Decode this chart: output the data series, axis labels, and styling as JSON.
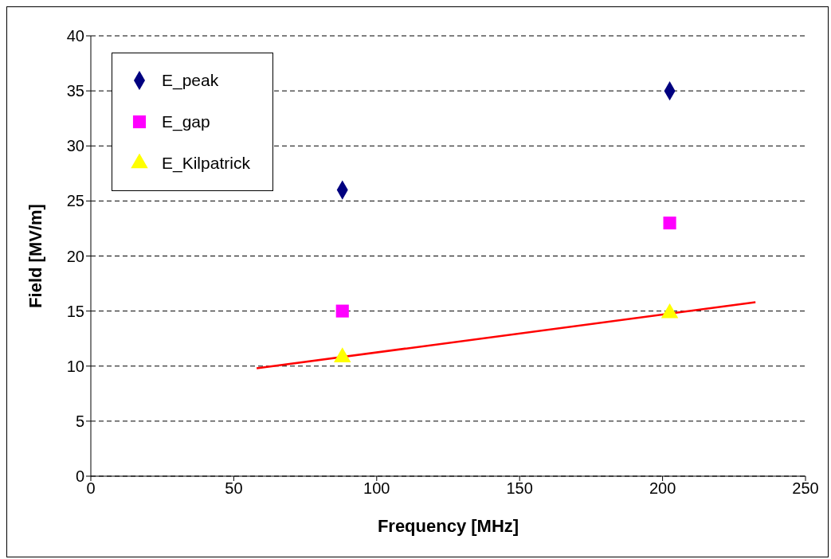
{
  "chart_data": {
    "type": "scatter",
    "xlabel": "Frequency [MHz]",
    "ylabel": "Field [MV/m]",
    "xlim": [
      0,
      250
    ],
    "xticks": [
      0,
      50,
      100,
      150,
      200,
      250
    ],
    "ylim": [
      0,
      40
    ],
    "yticks": [
      0,
      5,
      10,
      15,
      20,
      25,
      30,
      35,
      40
    ],
    "grid": "y",
    "legend": "top left",
    "series": [
      {
        "name": "E_peak",
        "color": "#000080",
        "marker": "diamond",
        "x": [
          88,
          202.5
        ],
        "values": [
          26,
          35
        ]
      },
      {
        "name": "E_gap",
        "color": "#ff00ff",
        "marker": "square",
        "x": [
          88,
          202.5
        ],
        "values": [
          15,
          23
        ]
      },
      {
        "name": "E_Kilpatrick",
        "color": "#ffff00",
        "marker": "triangle",
        "x": [
          88,
          202.5
        ],
        "values": [
          10.8,
          14.8
        ]
      },
      {
        "type": "line",
        "color": "#ff0000",
        "line_style": "solid",
        "marker": "none",
        "x": [
          58,
          232.5
        ],
        "values": [
          9.8,
          15.8
        ]
      }
    ]
  }
}
